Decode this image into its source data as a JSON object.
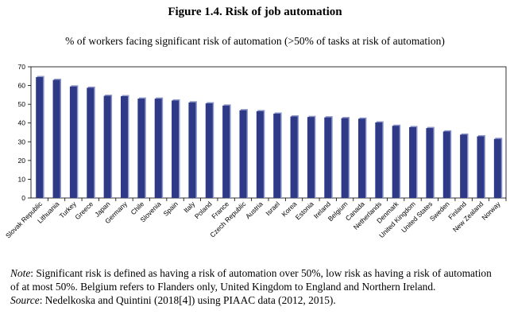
{
  "figure": {
    "title": "Figure 1.4. Risk of job automation",
    "subtitle": "% of workers facing significant risk of automation (>50% of tasks at risk of automation)"
  },
  "chart_data": {
    "type": "bar",
    "title": "Figure 1.4. Risk of job automation",
    "subtitle": "% of workers facing significant risk of automation (>50% of tasks at risk of automation)",
    "xlabel": "",
    "ylabel": "",
    "ylim": [
      0,
      70
    ],
    "yticks": [
      0,
      10,
      20,
      30,
      40,
      50,
      60,
      70
    ],
    "grid": false,
    "bar_color": "#2e3a87",
    "categories": [
      "Slovak Republic",
      "Lithuania",
      "Turkey",
      "Greece",
      "Japan",
      "Germany",
      "Chile",
      "Slovenia",
      "Spain",
      "Italy",
      "Poland",
      "France",
      "Czech Republic",
      "Austria",
      "Israel",
      "Korea",
      "Estonia",
      "Ireland",
      "Belgium",
      "Canada",
      "Netherlands",
      "Denmark",
      "United Kingdom",
      "United States",
      "Sweden",
      "Finland",
      "New Zealand",
      "Norway"
    ],
    "values": [
      64.5,
      63.0,
      59.5,
      58.8,
      54.5,
      54.3,
      53.0,
      53.0,
      52.0,
      51.0,
      50.5,
      49.3,
      46.8,
      46.3,
      45.0,
      43.5,
      43.2,
      43.0,
      42.6,
      42.3,
      40.3,
      38.5,
      37.8,
      37.3,
      35.5,
      33.8,
      32.9,
      31.5
    ]
  },
  "notes": {
    "note_label": "Note",
    "note_text": ": Significant risk is defined as having a risk of automation over 50%, low risk as having a risk of automation of at most 50%. Belgium refers to Flanders only, United Kingdom to England and Northern Ireland.",
    "source_label": "Source",
    "source_text": ": Nedelkoska and Quintini (2018[4]) using PIAAC data (2012, 2015)."
  }
}
